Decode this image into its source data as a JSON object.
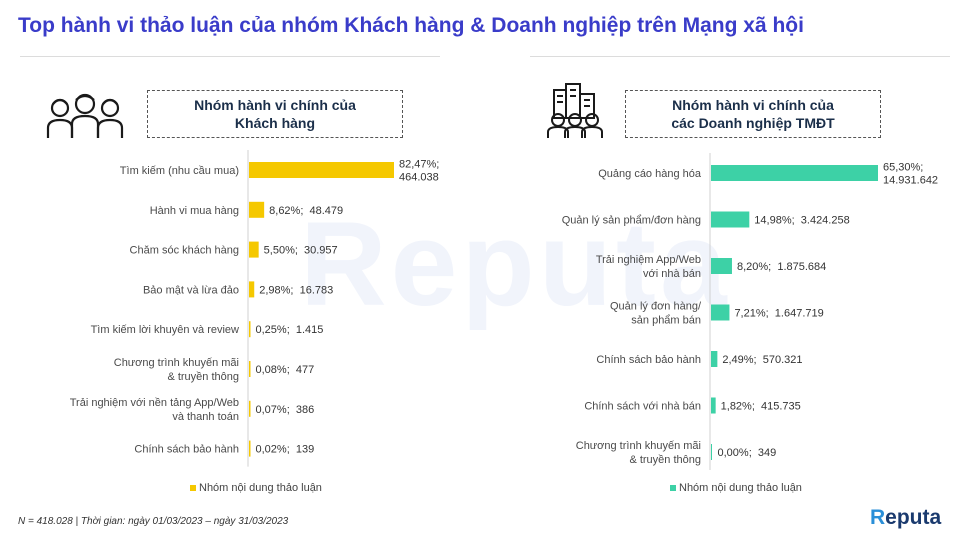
{
  "title": "Top hành vi thảo luận của nhóm Khách hàng & Doanh nghiệp trên Mạng xã hội",
  "left_panel": {
    "heading_line1": "Nhóm hành vi chính của",
    "heading_line2": "Khách hàng",
    "icon": "people-group-icon"
  },
  "right_panel": {
    "heading_line1": "Nhóm hành vi chính của",
    "heading_line2": "các Doanh nghiệp TMĐT",
    "icon": "business-people-buildings-icon"
  },
  "chart_data": [
    {
      "type": "bar",
      "orientation": "horizontal",
      "color": "#f5c800",
      "legend": "Nhóm nội dung thảo luận",
      "legend_position": "bottom",
      "categories": [
        [
          "Tìm kiếm (nhu cầu mua)"
        ],
        [
          "Hành vi mua hàng"
        ],
        [
          "Chăm sóc khách hàng"
        ],
        [
          "Bảo mật và lừa đảo"
        ],
        [
          "Tìm kiếm lời khuyên và review"
        ],
        [
          "Chương trình khuyến mãi",
          "& truyền thông"
        ],
        [
          "Trải nghiệm với nền tảng App/Web",
          "và thanh toán"
        ],
        [
          "Chính sách bảo hành"
        ]
      ],
      "values": [
        82.47,
        8.62,
        5.5,
        2.98,
        0.25,
        0.08,
        0.07,
        0.02
      ],
      "data_labels": [
        [
          "82,47%;",
          "464.038"
        ],
        [
          "8,62%;  48.479"
        ],
        [
          "5,50%;  30.957"
        ],
        [
          "2,98%;  16.783"
        ],
        [
          "0,25%;  1.415"
        ],
        [
          "0,08%;  477"
        ],
        [
          "0,07%;  386"
        ],
        [
          "0,02%;  139"
        ]
      ],
      "xlim": [
        0,
        100
      ]
    },
    {
      "type": "bar",
      "orientation": "horizontal",
      "color": "#3dd1a6",
      "legend": "Nhóm nội dung thảo luận",
      "legend_position": "bottom",
      "categories": [
        [
          "Quảng cáo hàng hóa"
        ],
        [
          "Quản lý sản phẩm/đơn hàng"
        ],
        [
          "Trải nghiệm App/Web",
          "với nhà bán"
        ],
        [
          "Quản lý đơn hàng/",
          "sản phẩm bán"
        ],
        [
          "Chính sách bảo hành"
        ],
        [
          "Chính sách với nhà bán"
        ],
        [
          "Chương trình khuyến mãi",
          "& truyền thông"
        ]
      ],
      "values": [
        65.3,
        14.98,
        8.2,
        7.21,
        2.49,
        1.82,
        0.0
      ],
      "data_labels": [
        [
          "65,30%;",
          "14.931.642"
        ],
        [
          "14,98%;  3.424.258"
        ],
        [
          "8,20%;  1.875.684"
        ],
        [
          "7,21%;  1.647.719"
        ],
        [
          "2,49%;  570.321"
        ],
        [
          "1,82%;  415.735"
        ],
        [
          "0,00%;  349"
        ]
      ],
      "xlim": [
        0,
        100
      ]
    }
  ],
  "footnote": "N = 418.028 | Thời gian: ngày 01/03/2023 – ngày 31/03/2023",
  "watermark": "Reputa",
  "logo": {
    "prefix": "R",
    "rest": "eputa"
  }
}
